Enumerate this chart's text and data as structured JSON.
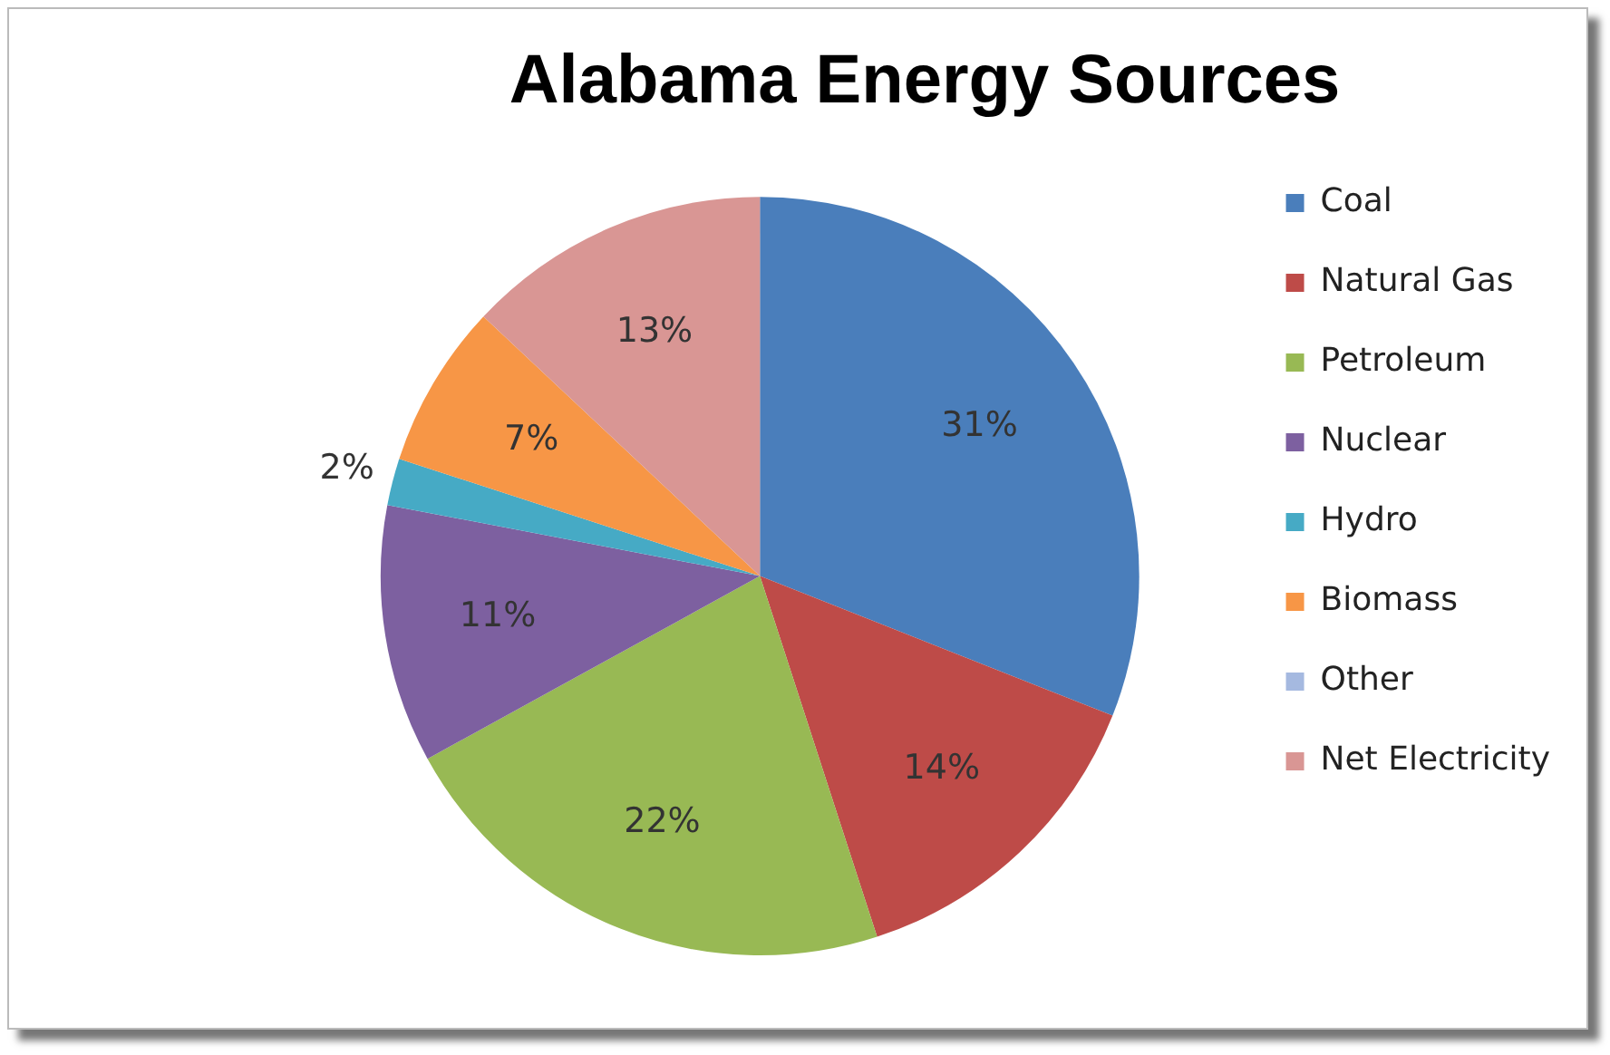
{
  "chart_data": {
    "type": "pie",
    "title": "Alabama Energy Sources",
    "categories": [
      "Coal",
      "Natural Gas",
      "Petroleum",
      "Nuclear",
      "Hydro",
      "Biomass",
      "Other",
      "Net Electricity"
    ],
    "values": [
      31,
      14,
      22,
      11,
      2,
      7,
      0,
      13
    ],
    "colors": [
      "#4a7ebb",
      "#be4b48",
      "#98b954",
      "#7d60a0",
      "#46aac5",
      "#f79646",
      "#a5b9e0",
      "#d99694"
    ],
    "value_labels": [
      "31%",
      "14%",
      "22%",
      "11%",
      "2%",
      "7%",
      null,
      "13%"
    ],
    "legend": "right"
  }
}
